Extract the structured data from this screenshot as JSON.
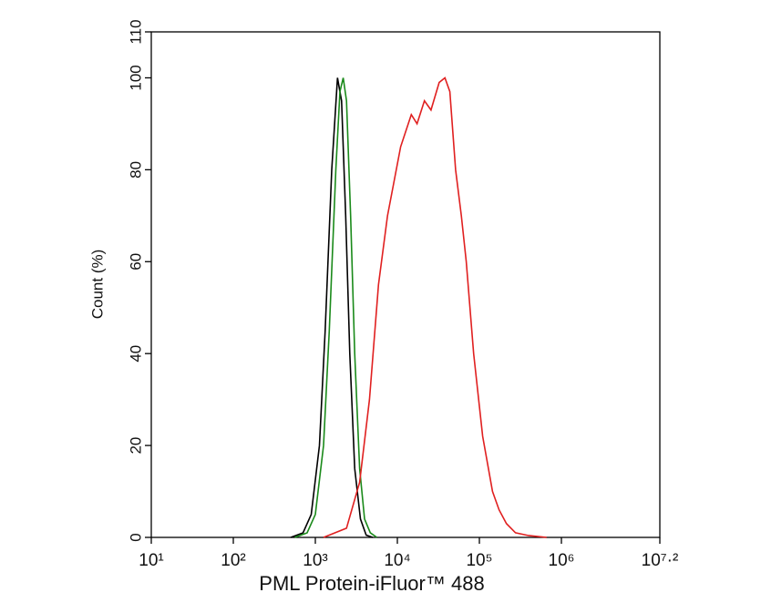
{
  "chart_data": {
    "type": "line",
    "x_label": "PML Protein-iFluor™ 488",
    "y_label": "Count  (%)",
    "log_x": true,
    "xlim": [
      10,
      15848931.9
    ],
    "ylim": [
      0,
      110
    ],
    "xticks": [
      {
        "value": 10,
        "label": "10¹"
      },
      {
        "value": 100,
        "label": "10²"
      },
      {
        "value": 1000,
        "label": "10³"
      },
      {
        "value": 10000,
        "label": "10⁴"
      },
      {
        "value": 100000,
        "label": "10⁵"
      },
      {
        "value": 1000000,
        "label": "10⁶"
      },
      {
        "value": 15848931.9,
        "label": "10⁷·²"
      }
    ],
    "yticks": [
      0,
      20,
      40,
      60,
      80,
      100,
      110
    ],
    "series": [
      {
        "color": "#000000",
        "x": [
          501,
          708,
          891,
          1122,
          1318,
          1585,
          1862,
          2089,
          2344,
          2630,
          3020,
          3548,
          4169,
          5012
        ],
        "values": [
          0,
          1,
          5,
          20,
          45,
          80,
          100,
          95,
          70,
          40,
          15,
          4,
          0.5,
          0
        ]
      },
      {
        "color": "#1a8a1a",
        "x": [
          562,
          794,
          1000,
          1259,
          1479,
          1778,
          1995,
          2188,
          2399,
          2692,
          3020,
          3467,
          3981,
          4677,
          5623
        ],
        "values": [
          0,
          1,
          5,
          20,
          45,
          80,
          97,
          100,
          95,
          70,
          40,
          15,
          4,
          1,
          0
        ]
      },
      {
        "color": "#e02020",
        "x": [
          1259,
          2399,
          3467,
          4571,
          5888,
          7586,
          10965,
          14791,
          17378,
          21380,
          25704,
          32359,
          38019,
          43652,
          51286,
          60256,
          69183,
          85114,
          109648,
          144544,
          173780,
          213796,
          275423,
          398107,
          660693
        ],
        "values": [
          0,
          2,
          12,
          30,
          55,
          70,
          85,
          92,
          90,
          95,
          93,
          99,
          100,
          97,
          80,
          70,
          60,
          40,
          22,
          10,
          6,
          3,
          1,
          0.4,
          0
        ]
      }
    ]
  }
}
